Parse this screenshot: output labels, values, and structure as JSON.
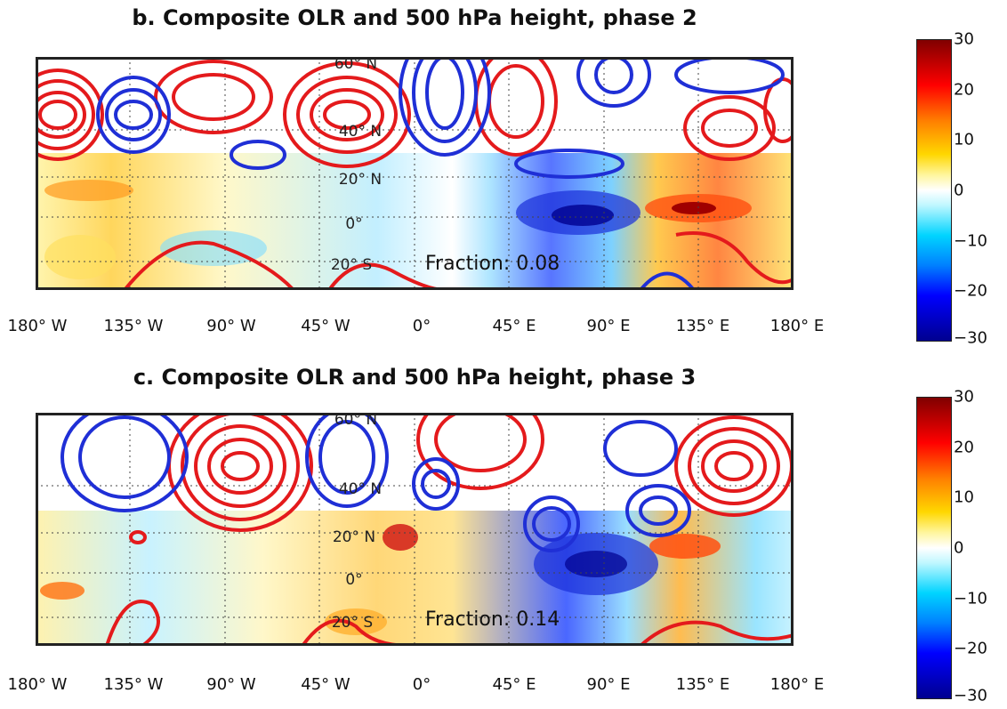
{
  "panels": [
    {
      "title": "b. Composite OLR and 500 hPa height, phase 2",
      "fraction": "Fraction: 0.08",
      "lat_labels": [
        "60° N",
        "40° N",
        "20° N",
        "0°",
        "20° S"
      ],
      "lon_labels": [
        "180° W",
        "135° W",
        "90° W",
        "45° W",
        "0°",
        "45° E",
        "90° E",
        "135° E",
        "180° E"
      ]
    },
    {
      "title": "c. Composite OLR and 500 hPa height, phase 3",
      "fraction": "Fraction: 0.14",
      "lat_labels": [
        "60° N",
        "40° N",
        "20° N",
        "0°",
        "20° S"
      ],
      "lon_labels": [
        "180° W",
        "135° W",
        "90° W",
        "45° W",
        "0°",
        "45° E",
        "90° E",
        "135° E",
        "180° E"
      ]
    }
  ],
  "colorbars": [
    {
      "ticks": [
        "30",
        "20",
        "10",
        "0",
        "−10",
        "−20",
        "−30"
      ]
    },
    {
      "ticks": [
        "30",
        "20",
        "10",
        "0",
        "−10",
        "−20",
        "−30"
      ]
    }
  ],
  "colors": {
    "positive_contour": "#e41a1c",
    "negative_contour": "#1f2fd6",
    "colormap": [
      "#00008f",
      "#0000ff",
      "#00b4ff",
      "#bff7ff",
      "#ffffff",
      "#fff6a0",
      "#ffd700",
      "#ff8000",
      "#ff0000",
      "#800000"
    ]
  }
}
